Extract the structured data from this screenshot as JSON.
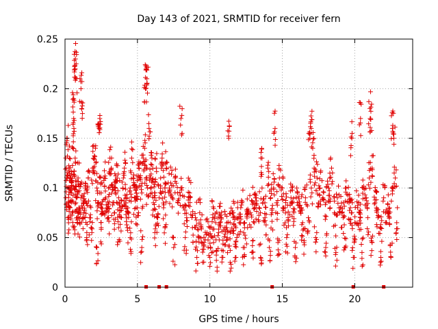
{
  "chart_data": {
    "type": "scatter",
    "title": "Day 143 of 2021, SRMTID for receiver fern",
    "xlabel": "GPS time / hours",
    "ylabel": "SRMTID / TECUs",
    "xlim": [
      0,
      24
    ],
    "ylim": [
      0,
      0.25
    ],
    "xticks": [
      0,
      5,
      10,
      15,
      20
    ],
    "yticks": [
      0,
      0.05,
      0.1,
      0.15,
      0.2,
      0.25
    ],
    "xtick_labels": [
      "0",
      "5",
      "10",
      "15",
      "20"
    ],
    "ytick_labels": [
      "0",
      "0.05",
      "0.1",
      "0.15",
      "0.2",
      "0.25"
    ],
    "grid": true,
    "marker": "+",
    "color": "#e00000",
    "zero_markers_x": [
      5.6,
      6.5,
      7.0,
      14.3,
      19.9,
      22.0
    ],
    "series": [
      {
        "x": [
          0.05,
          0.1,
          0.15,
          0.2,
          0.25,
          0.3,
          0.35,
          0.4,
          0.45,
          0.5,
          0.55,
          0.6,
          0.65,
          0.7,
          0.75,
          0.8,
          0.85,
          0.9,
          0.95,
          1.0,
          1.1,
          1.2,
          1.3,
          1.4,
          1.5,
          1.6,
          1.7,
          1.8,
          1.9,
          2.0,
          2.1,
          2.2,
          2.3,
          2.4,
          2.5,
          2.6,
          2.7,
          2.8,
          2.9,
          3.0,
          3.1,
          3.2,
          3.3,
          3.4,
          3.5,
          3.6,
          3.7,
          3.8,
          3.9,
          4.0,
          4.1,
          4.2,
          4.3,
          4.4,
          4.5,
          4.6,
          4.7,
          4.8,
          4.9,
          5.0,
          5.1,
          5.2,
          5.3,
          5.4,
          5.5,
          5.6,
          5.7,
          5.8,
          5.9,
          6.0,
          6.1,
          6.2,
          6.3,
          6.4,
          6.5,
          6.6,
          6.7,
          6.8,
          6.9,
          7.0,
          7.2,
          7.4,
          7.6,
          7.8,
          8.0,
          8.2,
          8.4,
          8.6,
          8.8,
          9.0,
          9.2,
          9.4,
          9.6,
          9.8,
          10.0,
          10.2,
          10.4,
          10.6,
          10.8,
          11.0,
          11.2,
          11.4,
          11.6,
          11.8,
          12.0,
          12.2,
          12.4,
          12.6,
          12.8,
          13.0,
          13.2,
          13.4,
          13.6,
          13.8,
          14.0,
          14.2,
          14.4,
          14.6,
          14.8,
          15.0,
          15.2,
          15.4,
          15.6,
          15.8,
          16.0,
          16.2,
          16.4,
          16.6,
          16.8,
          17.0,
          17.2,
          17.4,
          17.6,
          17.8,
          18.0,
          18.2,
          18.4,
          18.6,
          18.8,
          19.0,
          19.2,
          19.4,
          19.6,
          19.8,
          20.0,
          20.2,
          20.4,
          20.6,
          20.8,
          21.0,
          21.2,
          21.4,
          21.6,
          21.8,
          22.0,
          22.2,
          22.4,
          22.6,
          22.8,
          0.7,
          0.72,
          0.74,
          0.6,
          1.1,
          1.15,
          2.35,
          2.4,
          5.55,
          5.6,
          5.65,
          8.0,
          11.3,
          13.6,
          14.5,
          16.9,
          17.0,
          17.1,
          19.8,
          20.4,
          21.05,
          21.1,
          22.6,
          22.7,
          0.2,
          0.6,
          1.5,
          2.2,
          3.0,
          3.7,
          4.5,
          5.3,
          6.2,
          6.9,
          7.5,
          8.3,
          9.1,
          9.5,
          10.0,
          10.5,
          10.9,
          11.4,
          11.8,
          12.3,
          12.9,
          13.5,
          14.1,
          14.7,
          15.3,
          15.9,
          16.5,
          17.3,
          18.0,
          18.7,
          19.3,
          19.9,
          20.5,
          21.2,
          21.8,
          22.5,
          0.4,
          1.3,
          2.5,
          3.5,
          4.2,
          5.0,
          6.0,
          7.3,
          8.6,
          9.3,
          10.2,
          10.7,
          11.1,
          11.6,
          12.1,
          12.6,
          13.1,
          13.8,
          14.3,
          15.1,
          15.7,
          16.3,
          17.5,
          18.3,
          19.1,
          19.7,
          20.3,
          20.9,
          21.5,
          22.3,
          22.9
        ],
        "y": [
          0.09,
          0.12,
          0.15,
          0.1,
          0.085,
          0.13,
          0.08,
          0.11,
          0.095,
          0.075,
          0.14,
          0.17,
          0.1,
          0.13,
          0.085,
          0.09,
          0.07,
          0.11,
          0.08,
          0.065,
          0.09,
          0.08,
          0.075,
          0.1,
          0.085,
          0.11,
          0.07,
          0.06,
          0.12,
          0.13,
          0.14,
          0.1,
          0.085,
          0.095,
          0.06,
          0.075,
          0.11,
          0.09,
          0.08,
          0.1,
          0.13,
          0.12,
          0.085,
          0.075,
          0.095,
          0.11,
          0.09,
          0.08,
          0.07,
          0.1,
          0.12,
          0.085,
          0.06,
          0.075,
          0.1,
          0.13,
          0.11,
          0.09,
          0.08,
          0.1,
          0.12,
          0.11,
          0.095,
          0.13,
          0.14,
          0.12,
          0.1,
          0.16,
          0.11,
          0.13,
          0.085,
          0.095,
          0.12,
          0.07,
          0.09,
          0.11,
          0.13,
          0.08,
          0.1,
          0.12,
          0.1,
          0.09,
          0.11,
          0.085,
          0.1,
          0.08,
          0.07,
          0.095,
          0.06,
          0.07,
          0.05,
          0.06,
          0.045,
          0.055,
          0.06,
          0.05,
          0.065,
          0.055,
          0.07,
          0.06,
          0.05,
          0.065,
          0.075,
          0.06,
          0.07,
          0.085,
          0.065,
          0.06,
          0.075,
          0.085,
          0.09,
          0.08,
          0.1,
          0.085,
          0.12,
          0.09,
          0.1,
          0.085,
          0.11,
          0.1,
          0.08,
          0.07,
          0.09,
          0.075,
          0.1,
          0.08,
          0.065,
          0.09,
          0.07,
          0.1,
          0.12,
          0.11,
          0.1,
          0.09,
          0.085,
          0.1,
          0.12,
          0.075,
          0.09,
          0.08,
          0.07,
          0.1,
          0.085,
          0.075,
          0.065,
          0.08,
          0.07,
          0.1,
          0.09,
          0.11,
          0.12,
          0.085,
          0.07,
          0.06,
          0.09,
          0.065,
          0.08,
          0.1,
          0.11,
          0.22,
          0.23,
          0.21,
          0.19,
          0.2,
          0.18,
          0.16,
          0.17,
          0.2,
          0.22,
          0.21,
          0.17,
          0.15,
          0.13,
          0.16,
          0.15,
          0.16,
          0.14,
          0.15,
          0.17,
          0.18,
          0.17,
          0.16,
          0.15,
          0.07,
          0.06,
          0.05,
          0.04,
          0.07,
          0.06,
          0.05,
          0.04,
          0.055,
          0.06,
          0.04,
          0.05,
          0.03,
          0.025,
          0.03,
          0.02,
          0.03,
          0.025,
          0.03,
          0.04,
          0.035,
          0.03,
          0.04,
          0.045,
          0.05,
          0.04,
          0.045,
          0.05,
          0.04,
          0.035,
          0.04,
          0.03,
          0.035,
          0.045,
          0.03,
          0.03,
          0.1,
          0.085,
          0.095,
          0.105,
          0.09,
          0.08,
          0.095,
          0.105,
          0.09,
          0.075,
          0.07,
          0.065,
          0.06,
          0.07,
          0.065,
          0.075,
          0.08,
          0.07,
          0.075,
          0.08,
          0.085,
          0.08,
          0.085,
          0.08,
          0.075,
          0.08,
          0.075,
          0.07,
          0.08,
          0.075,
          0.065
        ]
      }
    ]
  }
}
